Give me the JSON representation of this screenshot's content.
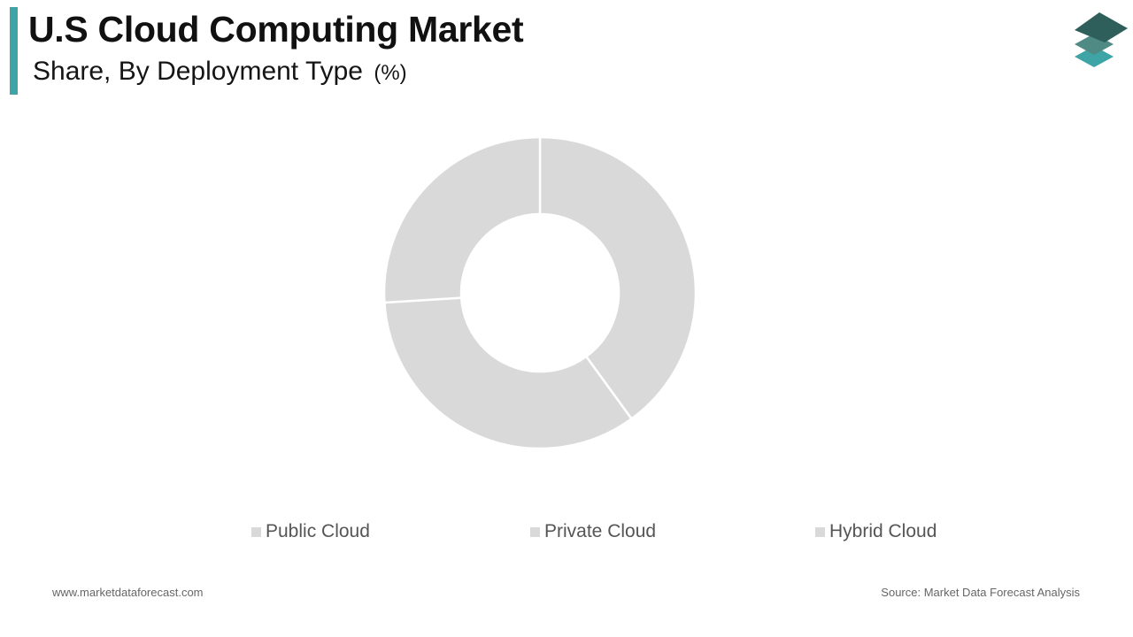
{
  "header": {
    "title": "U.S Cloud Computing Market",
    "subtitle": "Share, By Deployment Type",
    "unit": "(%)",
    "accent_color": "#3fa4a6"
  },
  "logo": {
    "icon": "stacked-layers-logo-icon",
    "colors": [
      "#2f5f5a",
      "#4f8a84",
      "#3fa4a6"
    ]
  },
  "chart_data": {
    "type": "pie",
    "donut": true,
    "title": "U.S Cloud Computing Market",
    "subtitle": "Share, By Deployment Type (%)",
    "categories": [
      "Public Cloud",
      "Private Cloud",
      "Hybrid Cloud"
    ],
    "values": [
      40,
      34,
      26
    ],
    "colors": [
      "#d9d9d9",
      "#d9d9d9",
      "#d9d9d9"
    ],
    "legend": {
      "position": "bottom",
      "entries": [
        "Public Cloud",
        "Private Cloud",
        "Hybrid Cloud"
      ]
    },
    "data_labels": false
  },
  "footer": {
    "website": "www.marketdataforecast.com",
    "source": "Source: Market Data Forecast Analysis"
  }
}
